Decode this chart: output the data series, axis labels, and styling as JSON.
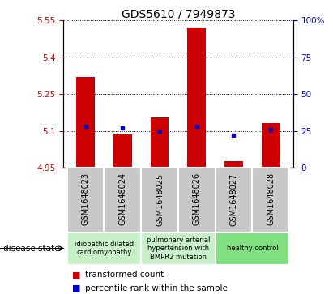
{
  "title": "GDS5610 / 7949873",
  "samples": [
    "GSM1648023",
    "GSM1648024",
    "GSM1648025",
    "GSM1648026",
    "GSM1648027",
    "GSM1648028"
  ],
  "transformed_count": [
    5.32,
    5.085,
    5.155,
    5.52,
    4.975,
    5.13
  ],
  "percentile_rank": [
    28,
    27,
    25,
    28,
    22,
    26
  ],
  "ylim_left": [
    4.95,
    5.55
  ],
  "yticks_left": [
    4.95,
    5.1,
    5.25,
    5.4,
    5.55
  ],
  "ylim_right": [
    0,
    100
  ],
  "yticks_right": [
    0,
    25,
    50,
    75,
    100
  ],
  "bar_color": "#cc0000",
  "dot_color": "#0000cc",
  "bar_width": 0.5,
  "groups": [
    {
      "start": 0,
      "end": 1,
      "label": "idiopathic dilated\ncardiomyopathy",
      "color": "#c8f0c8"
    },
    {
      "start": 2,
      "end": 3,
      "label": "pulmonary arterial\nhypertension with\nBMPR2 mutation",
      "color": "#c8f0c8"
    },
    {
      "start": 4,
      "end": 5,
      "label": "healthy control",
      "color": "#80e080"
    }
  ],
  "legend_bar_label": "transformed count",
  "legend_dot_label": "percentile rank within the sample",
  "disease_state_label": "disease state",
  "tick_color_left": "#cc0000",
  "tick_color_right": "#0000cc",
  "sample_box_color": "#c8c8c8",
  "title_fontsize": 10,
  "tick_fontsize": 7.5,
  "label_fontsize": 7,
  "legend_fontsize": 7.5
}
